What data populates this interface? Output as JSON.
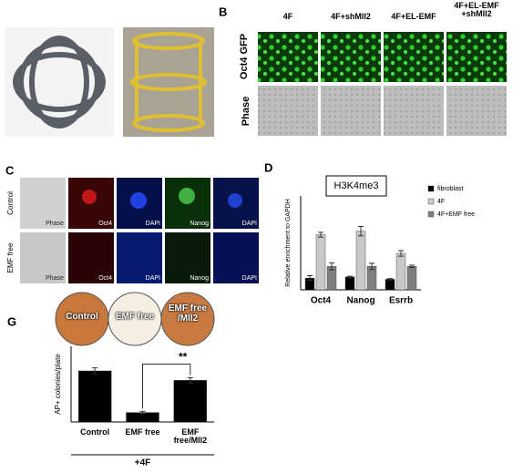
{
  "panel_b": {
    "label": "B",
    "columns": [
      "4F",
      "4F+shMll2",
      "4F+EL-EMF",
      "4F+EL-EMF +shMll2"
    ],
    "rows": [
      "Oct4 GFP",
      "Phase"
    ]
  },
  "panel_c": {
    "label": "C",
    "rows": [
      {
        "name": "Control",
        "channels": [
          "Phase",
          "Oct4",
          "DAPI",
          "Nanog",
          "DAPI"
        ]
      },
      {
        "name": "EMF free",
        "channels": [
          "Phase",
          "Oct4",
          "DAPI",
          "Nanog",
          "DAPI"
        ]
      }
    ]
  },
  "chart_data": [
    {
      "panel": "D",
      "type": "bar",
      "title": "H3K4me3",
      "ylabel": "Relative enrichment to GAPDH",
      "categories": [
        "Oct4",
        "Nanog",
        "Esrrb"
      ],
      "ylim": [
        0,
        4
      ],
      "legend": "upper right",
      "series": [
        {
          "name": "fibroblast",
          "color": "#000000",
          "values": [
            0.5,
            0.55,
            0.45
          ],
          "errors": [
            0.1,
            0.03,
            0.03
          ]
        },
        {
          "name": "4F",
          "color": "#c8c8c8",
          "values": [
            2.35,
            2.5,
            1.55
          ],
          "errors": [
            0.1,
            0.2,
            0.12
          ]
        },
        {
          "name": "4F+EMF free",
          "color": "#7f7f7f",
          "values": [
            1.0,
            1.0,
            1.0
          ],
          "errors": [
            0.15,
            0.13,
            0.05
          ]
        }
      ]
    },
    {
      "panel": "G",
      "type": "bar",
      "ylabel": "AP+ colonies/plate",
      "categories": [
        "Control",
        "EMF free",
        "EMF free/Mll2"
      ],
      "values": [
        135,
        25,
        110
      ],
      "errors": [
        8,
        3,
        7
      ],
      "color": "#000000",
      "ylim": [
        0,
        200
      ],
      "annotation": "**",
      "group_label": "+4F",
      "dishes": [
        "Control",
        "EMF free",
        "EMF free /Mll2"
      ]
    }
  ]
}
